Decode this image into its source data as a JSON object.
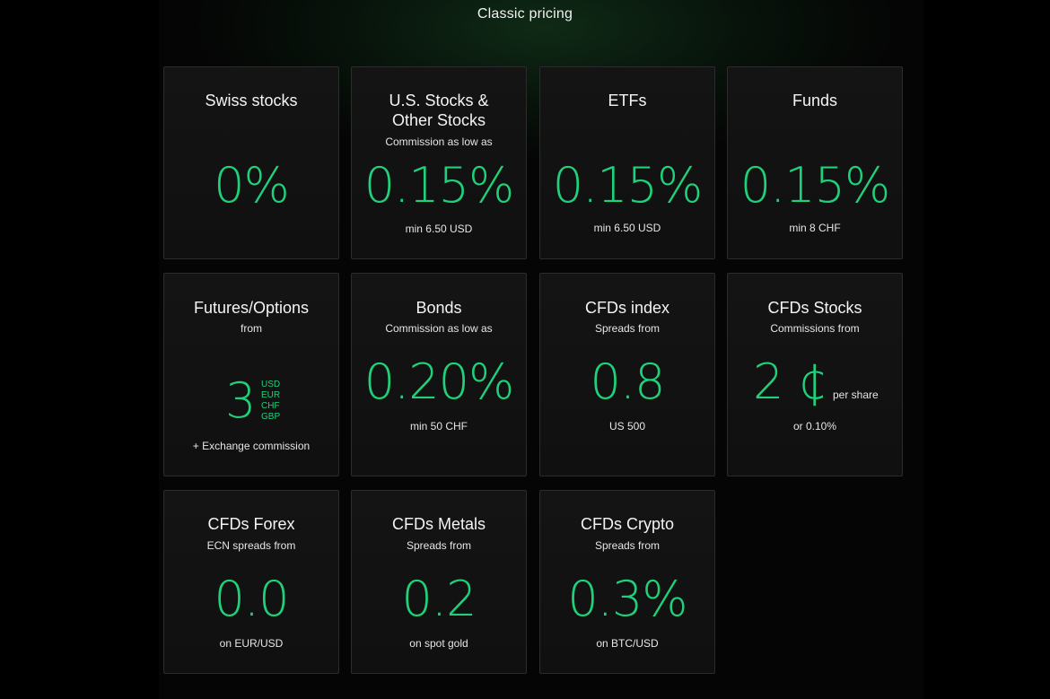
{
  "page": {
    "title": "Classic pricing"
  },
  "colors": {
    "background": "#000000",
    "card_bg": "#121212",
    "card_border": "#2c2c2c",
    "accent": "#1fd17a",
    "text": "#f2f2f2"
  },
  "cards": {
    "swiss_stocks": {
      "title": "Swiss stocks",
      "value": "0%"
    },
    "us_stocks": {
      "title": "U.S. Stocks & Other Stocks",
      "subtitle": "Commission as low as",
      "value": "0.15%",
      "note": "min 6.50 USD"
    },
    "etfs": {
      "title": "ETFs",
      "value": "0.15%",
      "note": "min 6.50 USD"
    },
    "funds": {
      "title": "Funds",
      "value": "0.15%",
      "note": "min 8 CHF"
    },
    "futures_options": {
      "title": "Futures/Options",
      "subtitle": "from",
      "value": "3",
      "currencies": [
        "USD",
        "EUR",
        "CHF",
        "GBP"
      ],
      "note": "+ Exchange commission"
    },
    "bonds": {
      "title": "Bonds",
      "subtitle": "Commission as low as",
      "value": "0.20%",
      "note": "min 50 CHF"
    },
    "cfds_index": {
      "title": "CFDs index",
      "subtitle": "Spreads from",
      "value": "0.8",
      "note": "US 500"
    },
    "cfds_stocks": {
      "title": "CFDs Stocks",
      "subtitle": "Commissions from",
      "value": "2 ¢",
      "unit": "per share",
      "note": "or 0.10%"
    },
    "cfds_forex": {
      "title": "CFDs Forex",
      "subtitle": "ECN spreads from",
      "value": "0.0",
      "note": "on EUR/USD"
    },
    "cfds_metals": {
      "title": "CFDs Metals",
      "subtitle": "Spreads from",
      "value": "0.2",
      "note": "on spot gold"
    },
    "cfds_crypto": {
      "title": "CFDs Crypto",
      "subtitle": "Spreads from",
      "value": "0.3%",
      "note": "on BTC/USD"
    }
  }
}
